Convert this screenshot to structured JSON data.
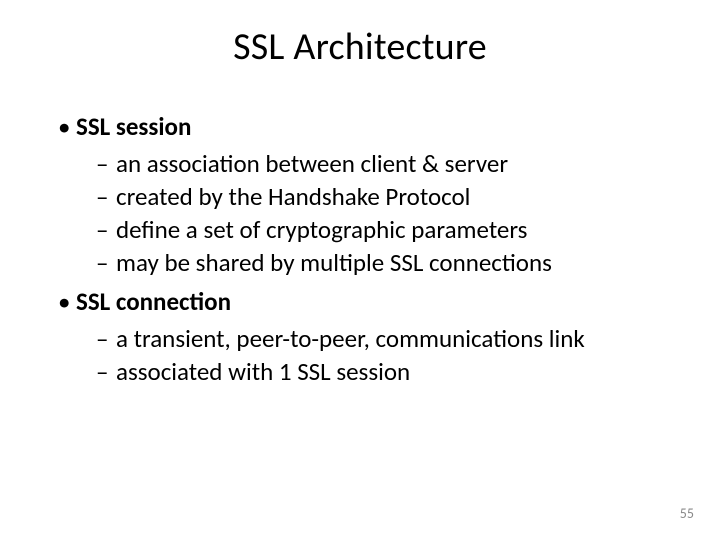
{
  "slide": {
    "title": "SSL Architecture",
    "pageNumber": "55",
    "colors": {
      "background": "#ffffff",
      "text": "#000000",
      "pageNum": "#8a8a8a"
    },
    "typography": {
      "titleSize": 38,
      "bodySize": 25,
      "pageNumSize": 14,
      "fontFamily": "Calibri"
    },
    "items": [
      {
        "bullet": "•",
        "label": "SSL session",
        "sub": [
          {
            "dash": "–",
            "text": "an association between client & server"
          },
          {
            "dash": "–",
            "text": "created by the Handshake Protocol"
          },
          {
            "dash": "–",
            "text": "define a set of cryptographic parameters"
          },
          {
            "dash": "–",
            "text": "may be shared by multiple SSL connections"
          }
        ]
      },
      {
        "bullet": "•",
        "label": "SSL connection",
        "sub": [
          {
            "dash": "–",
            "text": "a transient, peer-to-peer, communications link"
          },
          {
            "dash": "–",
            "text": "associated with 1 SSL session"
          }
        ]
      }
    ]
  }
}
